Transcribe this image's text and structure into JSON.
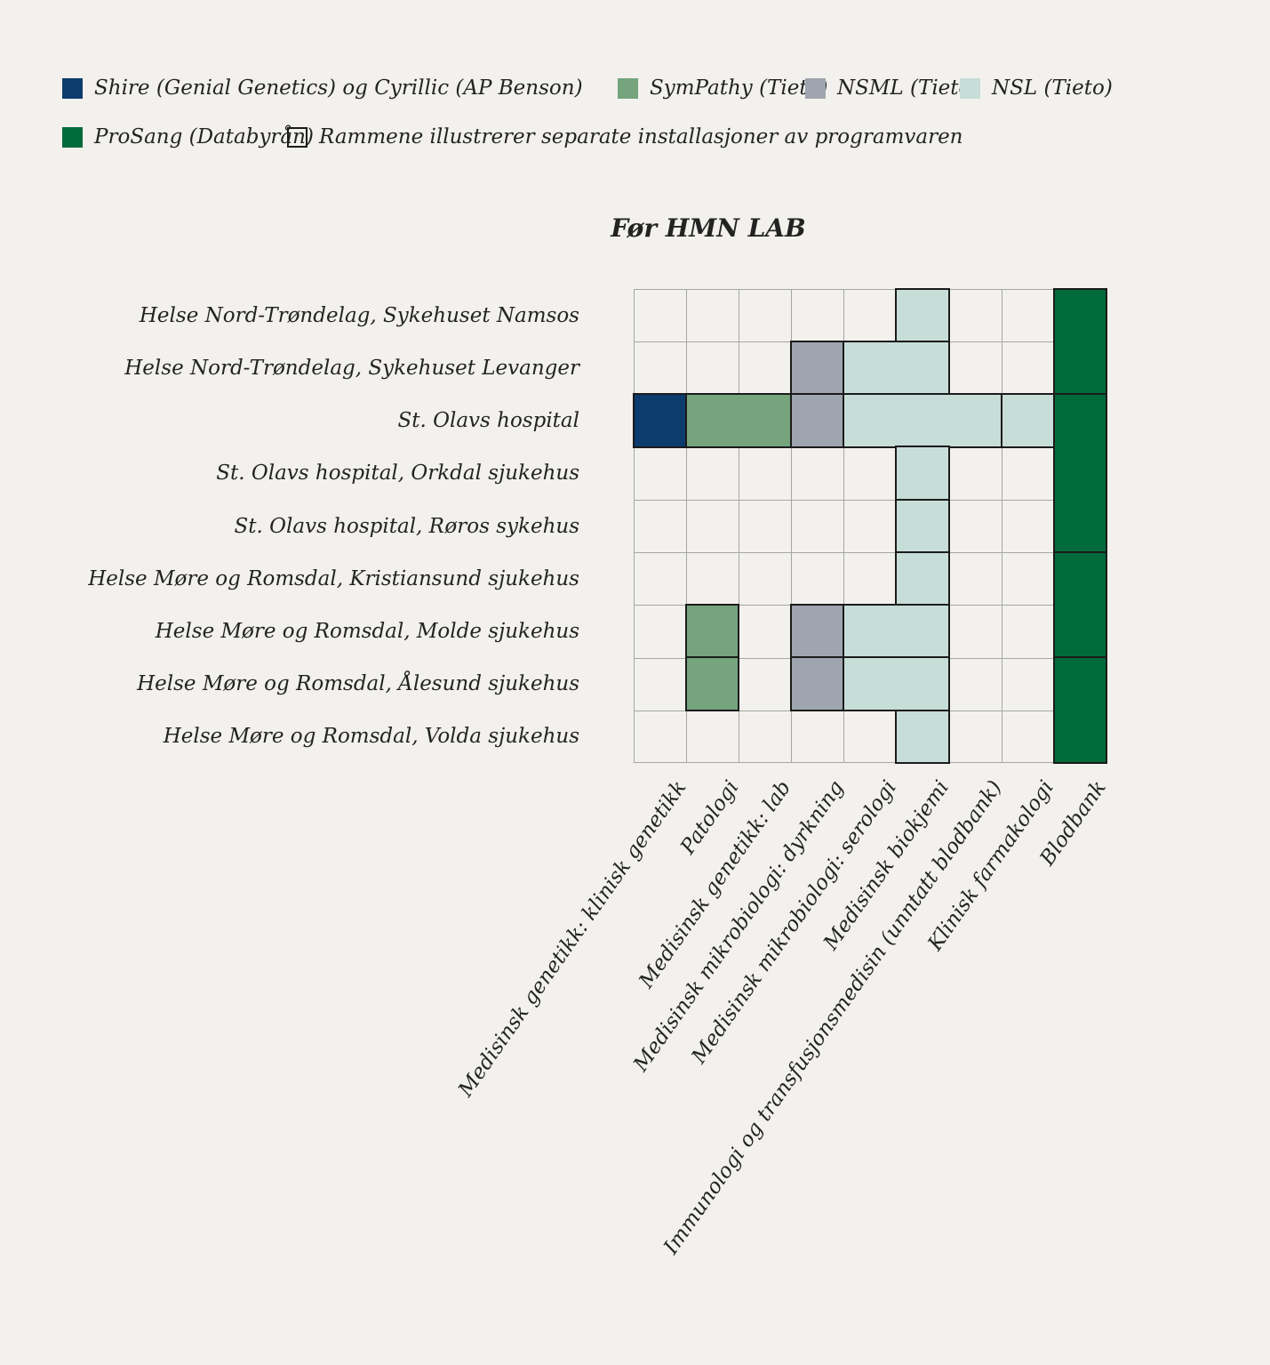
{
  "colors": {
    "background": "#f2f1ed",
    "grid_line": "#a6a6a3",
    "frame": "#1b1b1b"
  },
  "systems": {
    "shire": {
      "label": "Shire (Genial Genetics) og Cyrillic (AP Benson)",
      "color": "#0b3c6d"
    },
    "sympathy": {
      "label": "SymPathy (Tieto)",
      "color": "#75a47d"
    },
    "nsml": {
      "label": "NSML (Tieto)",
      "color": "#9ea5af"
    },
    "nsl": {
      "label": "NSL (Tieto)",
      "color": "#c7ddd8"
    },
    "prosang": {
      "label": "ProSang (Databyrån)",
      "color": "#006b3a"
    }
  },
  "legend": {
    "items": [
      {
        "key": "shire",
        "row": 1
      },
      {
        "key": "sympathy",
        "row": 1
      },
      {
        "key": "nsml",
        "row": 1
      },
      {
        "key": "nsl",
        "row": 1
      },
      {
        "key": "prosang",
        "row": 2
      },
      {
        "key": "frame-note",
        "row": 2,
        "outlined": true,
        "label": "Rammene illustrerer separate installasjoner av programvaren"
      }
    ]
  },
  "chart_data": {
    "type": "heatmap",
    "title": "Før HMN LAB",
    "rows": [
      "Helse Nord-Trøndelag, Sykehuset Namsos",
      "Helse Nord-Trøndelag, Sykehuset Levanger",
      "St. Olavs hospital",
      "St. Olavs hospital, Orkdal sjukehus",
      "St. Olavs hospital, Røros sykehus",
      "Helse Møre og Romsdal, Kristiansund sjukehus",
      "Helse Møre og Romsdal, Molde sjukehus",
      "Helse Møre og Romsdal, Ålesund sjukehus",
      "Helse Møre og Romsdal, Volda sjukehus"
    ],
    "columns": [
      "Medisinsk genetikk: klinisk genetikk",
      "Patologi",
      "Medisinsk genetikk: lab",
      "Medisinsk mikrobiologi: dyrkning",
      "Medisinsk mikrobiologi: serologi",
      "Medisinsk biokjemi",
      "Immunologi og transfusjonsmedisin (unntatt blodbank)",
      "Klinisk farmakologi",
      "Blodbank"
    ],
    "installations": [
      {
        "system": "nsl",
        "row_start": 1,
        "row_end": 1,
        "col_start": 6,
        "col_end": 6
      },
      {
        "system": "prosang",
        "row_start": 1,
        "row_end": 2,
        "col_start": 9,
        "col_end": 9
      },
      {
        "system": "nsml",
        "row_start": 2,
        "row_end": 2,
        "col_start": 4,
        "col_end": 4
      },
      {
        "system": "nsl",
        "row_start": 2,
        "row_end": 2,
        "col_start": 5,
        "col_end": 6
      },
      {
        "system": "shire",
        "row_start": 3,
        "row_end": 3,
        "col_start": 1,
        "col_end": 1
      },
      {
        "system": "sympathy",
        "row_start": 3,
        "row_end": 3,
        "col_start": 2,
        "col_end": 3
      },
      {
        "system": "nsml",
        "row_start": 3,
        "row_end": 3,
        "col_start": 4,
        "col_end": 4
      },
      {
        "system": "nsl",
        "row_start": 3,
        "row_end": 3,
        "col_start": 5,
        "col_end": 7
      },
      {
        "system": "nsl",
        "row_start": 3,
        "row_end": 3,
        "col_start": 8,
        "col_end": 8
      },
      {
        "system": "prosang",
        "row_start": 3,
        "row_end": 5,
        "col_start": 9,
        "col_end": 9
      },
      {
        "system": "nsl",
        "row_start": 4,
        "row_end": 4,
        "col_start": 6,
        "col_end": 6
      },
      {
        "system": "nsl",
        "row_start": 5,
        "row_end": 5,
        "col_start": 6,
        "col_end": 6
      },
      {
        "system": "nsl",
        "row_start": 6,
        "row_end": 6,
        "col_start": 6,
        "col_end": 6
      },
      {
        "system": "prosang",
        "row_start": 6,
        "row_end": 7,
        "col_start": 9,
        "col_end": 9
      },
      {
        "system": "sympathy",
        "row_start": 7,
        "row_end": 7,
        "col_start": 2,
        "col_end": 2
      },
      {
        "system": "nsml",
        "row_start": 7,
        "row_end": 7,
        "col_start": 4,
        "col_end": 4
      },
      {
        "system": "nsl",
        "row_start": 7,
        "row_end": 7,
        "col_start": 5,
        "col_end": 6
      },
      {
        "system": "sympathy",
        "row_start": 8,
        "row_end": 8,
        "col_start": 2,
        "col_end": 2
      },
      {
        "system": "nsml",
        "row_start": 8,
        "row_end": 8,
        "col_start": 4,
        "col_end": 4
      },
      {
        "system": "nsl",
        "row_start": 8,
        "row_end": 8,
        "col_start": 5,
        "col_end": 6
      },
      {
        "system": "prosang",
        "row_start": 8,
        "row_end": 9,
        "col_start": 9,
        "col_end": 9
      },
      {
        "system": "nsl",
        "row_start": 9,
        "row_end": 9,
        "col_start": 6,
        "col_end": 6
      }
    ],
    "layout_hints": {
      "grid": "on",
      "legend_position": "top-left",
      "x_tick_rotation_deg": 55
    }
  }
}
